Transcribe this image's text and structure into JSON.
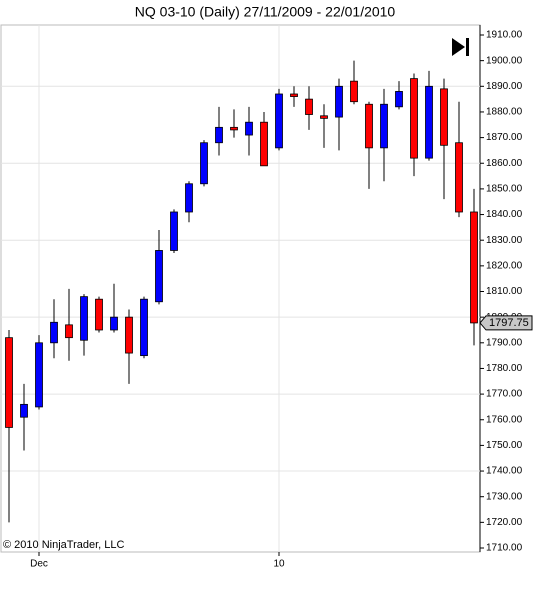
{
  "chart_data": {
    "type": "candlestick",
    "title": "NQ 03-10 (Daily)  27/11/2009 - 22/01/2010",
    "copyright": "© 2010 NinjaTrader, LLC",
    "categories": [
      null,
      null,
      "Dec",
      null,
      null,
      null,
      null,
      null,
      null,
      null,
      null,
      null,
      null,
      null,
      null,
      null,
      null,
      null,
      "10",
      null,
      null,
      null,
      null,
      null,
      null,
      null,
      null,
      null,
      null,
      null,
      null,
      null
    ],
    "open": [
      1792,
      1761,
      1765,
      1790,
      1797,
      1791,
      1807,
      1795,
      1800,
      1785,
      1806,
      1826,
      1841,
      1852,
      1868,
      1874,
      1871,
      1876,
      1866,
      1887,
      1885,
      1878.5,
      1878,
      1892,
      1883,
      1866,
      1882,
      1893,
      1862,
      1889,
      1868,
      1841
    ],
    "high": [
      1795,
      1774,
      1793,
      1807,
      1811,
      1809,
      1808,
      1813,
      1803,
      1808,
      1834,
      1842,
      1853,
      1869,
      1882,
      1881,
      1882,
      1880,
      1889,
      1890,
      1890,
      1883,
      1893,
      1900,
      1884,
      1889,
      1892,
      1895,
      1896,
      1893,
      1884,
      1850
    ],
    "low": [
      1720,
      1748,
      1764,
      1784,
      1783,
      1785,
      1794,
      1794,
      1774,
      1784,
      1805,
      1825,
      1837,
      1851,
      1863,
      1870,
      1863,
      1859,
      1865,
      1882,
      1873,
      1866,
      1865,
      1883,
      1850,
      1853,
      1881,
      1855,
      1861,
      1846,
      1839,
      1789
    ],
    "close": [
      1757,
      1766,
      1790,
      1798,
      1792,
      1808,
      1795,
      1800,
      1786,
      1807,
      1826,
      1841,
      1852,
      1868,
      1874,
      1873,
      1876,
      1859,
      1887,
      1886,
      1879,
      1877.5,
      1890,
      1884,
      1866,
      1883,
      1888,
      1862,
      1890,
      1867,
      1841,
      1797.75
    ],
    "last_label": "1797.75",
    "up_color": "#0000ff",
    "down_color": "#ff0000",
    "ylim": [
      1710,
      1910
    ],
    "yticks": [
      {
        "value": 1710,
        "label": "1710.00"
      },
      {
        "value": 1720,
        "label": "1720.00"
      },
      {
        "value": 1730,
        "label": "1730.00"
      },
      {
        "value": 1740,
        "label": "1740.00"
      },
      {
        "value": 1750,
        "label": "1750.00"
      },
      {
        "value": 1760,
        "label": "1760.00"
      },
      {
        "value": 1770,
        "label": "1770.00"
      },
      {
        "value": 1780,
        "label": "1780.00"
      },
      {
        "value": 1790,
        "label": "1790.00"
      },
      {
        "value": 1800,
        "label": "1800.00"
      },
      {
        "value": 1810,
        "label": "1810.00"
      },
      {
        "value": 1820,
        "label": "1820.00"
      },
      {
        "value": 1830,
        "label": "1830.00"
      },
      {
        "value": 1840,
        "label": "1840.00"
      },
      {
        "value": 1850,
        "label": "1850.00"
      },
      {
        "value": 1860,
        "label": "1860.00"
      },
      {
        "value": 1870,
        "label": "1870.00"
      },
      {
        "value": 1880,
        "label": "1880.00"
      },
      {
        "value": 1890,
        "label": "1890.00"
      },
      {
        "value": 1900,
        "label": "1900.00"
      },
      {
        "value": 1910,
        "label": "1910.00"
      }
    ],
    "grid": true
  }
}
